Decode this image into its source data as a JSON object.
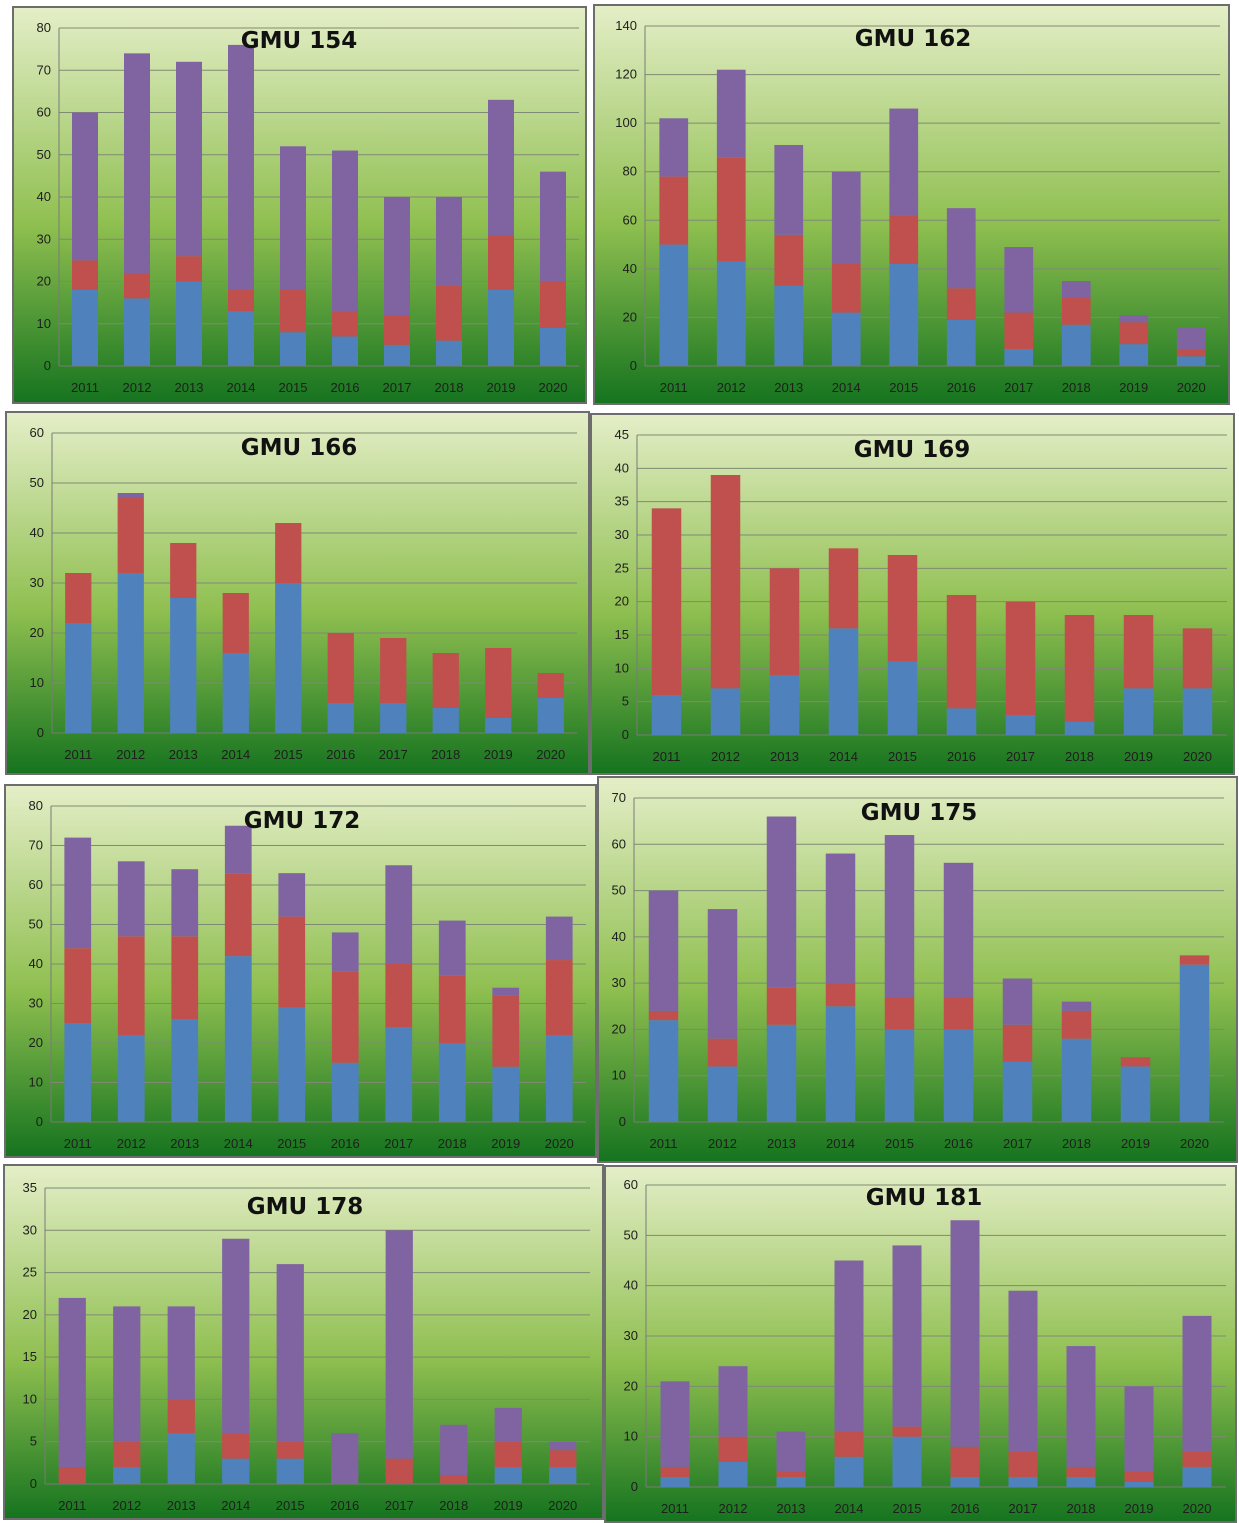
{
  "colors": {
    "series": [
      "#4f81bd",
      "#c0504d",
      "#8064a2"
    ],
    "gradient_top": "#e4eec7",
    "gradient_mid": "#8fbf50",
    "gradient_bottom": "#16741f",
    "gridline": "#7f8a74"
  },
  "chart_data": [
    {
      "type": "bar",
      "stacked": true,
      "title": "GMU 154",
      "categories": [
        "2011",
        "2012",
        "2013",
        "2014",
        "2015",
        "2016",
        "2017",
        "2018",
        "2019",
        "2020"
      ],
      "series": [
        {
          "values": [
            18,
            16,
            20,
            13,
            8,
            7,
            5,
            6,
            18,
            9
          ]
        },
        {
          "values": [
            7,
            6,
            6,
            5,
            10,
            6,
            7,
            13,
            13,
            11
          ]
        },
        {
          "values": [
            35,
            52,
            46,
            58,
            34,
            38,
            28,
            21,
            32,
            26
          ]
        }
      ],
      "ylim": [
        0,
        80
      ],
      "yticks": [
        0,
        10,
        20,
        30,
        40,
        50,
        60,
        70,
        80
      ],
      "grid": true
    },
    {
      "type": "bar",
      "stacked": true,
      "title": "GMU 162",
      "categories": [
        "2011",
        "2012",
        "2013",
        "2014",
        "2015",
        "2016",
        "2017",
        "2018",
        "2019",
        "2020"
      ],
      "series": [
        {
          "values": [
            50,
            43,
            33,
            22,
            42,
            19,
            7,
            17,
            9,
            4
          ]
        },
        {
          "values": [
            28,
            43,
            21,
            20,
            20,
            13,
            15,
            11,
            9,
            3
          ]
        },
        {
          "values": [
            24,
            36,
            37,
            38,
            44,
            33,
            27,
            7,
            3,
            9
          ]
        }
      ],
      "ylim": [
        0,
        140
      ],
      "yticks": [
        0,
        20,
        40,
        60,
        80,
        100,
        120,
        140
      ],
      "grid": true
    },
    {
      "type": "bar",
      "stacked": true,
      "title": "GMU 166",
      "categories": [
        "2011",
        "2012",
        "2013",
        "2014",
        "2015",
        "2016",
        "2017",
        "2018",
        "2019",
        "2020"
      ],
      "series": [
        {
          "values": [
            22,
            32,
            27,
            16,
            30,
            6,
            6,
            5,
            3,
            7
          ]
        },
        {
          "values": [
            10,
            15,
            11,
            12,
            12,
            14,
            13,
            11,
            14,
            5
          ]
        },
        {
          "values": [
            0,
            1,
            0,
            0,
            0,
            0,
            0,
            0,
            0,
            0
          ]
        }
      ],
      "ylim": [
        0,
        60
      ],
      "yticks": [
        0,
        10,
        20,
        30,
        40,
        50,
        60
      ],
      "grid": true
    },
    {
      "type": "bar",
      "stacked": true,
      "title": "GMU 169",
      "categories": [
        "2011",
        "2012",
        "2013",
        "2014",
        "2015",
        "2016",
        "2017",
        "2018",
        "2019",
        "2020"
      ],
      "series": [
        {
          "values": [
            6,
            7,
            9,
            16,
            11,
            4,
            3,
            2,
            7,
            7
          ]
        },
        {
          "values": [
            28,
            32,
            16,
            12,
            16,
            17,
            17,
            16,
            11,
            9
          ]
        },
        {
          "values": [
            0,
            0,
            0,
            0,
            0,
            0,
            0,
            0,
            0,
            0
          ]
        }
      ],
      "ylim": [
        0,
        45
      ],
      "yticks": [
        0,
        5,
        10,
        15,
        20,
        25,
        30,
        35,
        40,
        45
      ],
      "grid": true
    },
    {
      "type": "bar",
      "stacked": true,
      "title": "GMU 172",
      "categories": [
        "2011",
        "2012",
        "2013",
        "2014",
        "2015",
        "2016",
        "2017",
        "2018",
        "2019",
        "2020"
      ],
      "series": [
        {
          "values": [
            25,
            22,
            26,
            42,
            29,
            15,
            24,
            20,
            14,
            22
          ]
        },
        {
          "values": [
            19,
            25,
            21,
            21,
            23,
            23,
            16,
            17,
            18,
            19
          ]
        },
        {
          "values": [
            28,
            19,
            17,
            12,
            11,
            10,
            25,
            14,
            2,
            11
          ]
        }
      ],
      "ylim": [
        0,
        80
      ],
      "yticks": [
        0,
        10,
        20,
        30,
        40,
        50,
        60,
        70,
        80
      ],
      "grid": true
    },
    {
      "type": "bar",
      "stacked": true,
      "title": "GMU 175",
      "categories": [
        "2011",
        "2012",
        "2013",
        "2014",
        "2015",
        "2016",
        "2017",
        "2018",
        "2019",
        "2020"
      ],
      "series": [
        {
          "values": [
            22,
            12,
            21,
            25,
            20,
            20,
            13,
            18,
            12,
            34
          ]
        },
        {
          "values": [
            2,
            6,
            8,
            5,
            7,
            7,
            8,
            6,
            2,
            2
          ]
        },
        {
          "values": [
            26,
            28,
            37,
            28,
            35,
            29,
            10,
            2,
            0,
            0
          ]
        }
      ],
      "ylim": [
        0,
        70
      ],
      "yticks": [
        0,
        10,
        20,
        30,
        40,
        50,
        60,
        70
      ],
      "grid": true
    },
    {
      "type": "bar",
      "stacked": true,
      "title": "GMU 178",
      "categories": [
        "2011",
        "2012",
        "2013",
        "2014",
        "2015",
        "2016",
        "2017",
        "2018",
        "2019",
        "2020"
      ],
      "series": [
        {
          "values": [
            0,
            2,
            6,
            3,
            3,
            0,
            0,
            0,
            2,
            2
          ]
        },
        {
          "values": [
            2,
            3,
            4,
            3,
            2,
            0,
            3,
            1,
            3,
            2
          ]
        },
        {
          "values": [
            20,
            16,
            11,
            23,
            21,
            6,
            27,
            6,
            4,
            1
          ]
        }
      ],
      "ylim": [
        0,
        35
      ],
      "yticks": [
        0,
        5,
        10,
        15,
        20,
        25,
        30,
        35
      ],
      "grid": true
    },
    {
      "type": "bar",
      "stacked": true,
      "title": "GMU 181",
      "categories": [
        "2011",
        "2012",
        "2013",
        "2014",
        "2015",
        "2016",
        "2017",
        "2018",
        "2019",
        "2020"
      ],
      "series": [
        {
          "values": [
            2,
            5,
            2,
            6,
            10,
            2,
            2,
            2,
            1,
            4
          ]
        },
        {
          "values": [
            2,
            5,
            1,
            5,
            2,
            6,
            5,
            2,
            2,
            3
          ]
        },
        {
          "values": [
            17,
            14,
            8,
            34,
            36,
            45,
            32,
            24,
            17,
            27
          ]
        }
      ],
      "ylim": [
        0,
        60
      ],
      "yticks": [
        0,
        10,
        20,
        30,
        40,
        50,
        60
      ],
      "grid": true
    }
  ]
}
